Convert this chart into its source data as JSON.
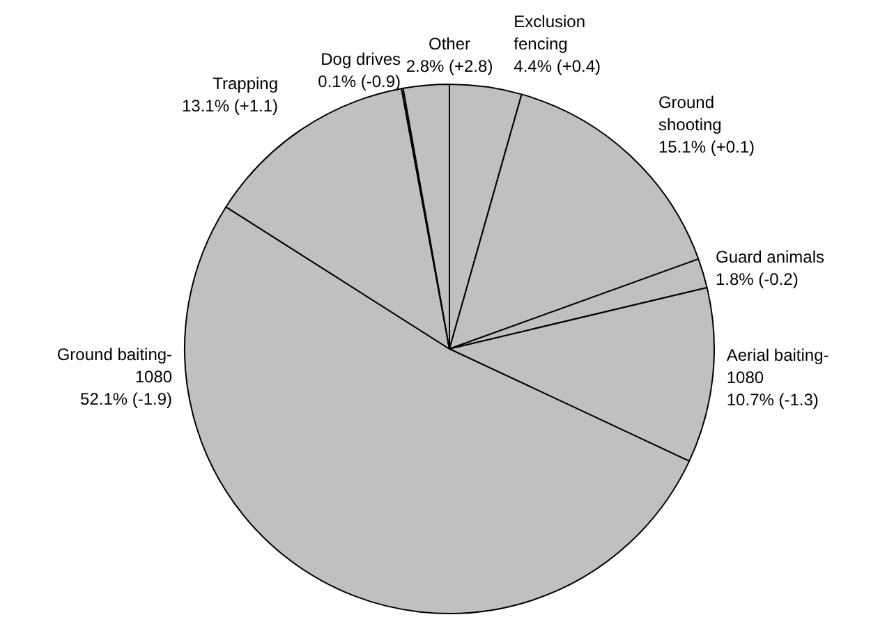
{
  "chart_data": {
    "type": "pie",
    "categories": [
      "Exclusion fencing",
      "Ground shooting",
      "Guard animals",
      "Aerial baiting-1080",
      "Ground baiting-1080",
      "Trapping",
      "Dog drives",
      "Other"
    ],
    "values": [
      4.4,
      15.1,
      1.8,
      10.7,
      52.1,
      13.1,
      0.1,
      2.8
    ],
    "value_labels": [
      "4.4% (+0.4)",
      "15.1% (+0.1)",
      "1.8% (-0.2)",
      "10.7% (-1.3)",
      "52.1% (-1.9)",
      "13.1% (+1.1)",
      "0.1% (-0.9)",
      "2.8% (+2.8)"
    ],
    "colors": [
      "#c0c0c0",
      "#c0c0c0",
      "#c0c0c0",
      "#c0c0c0",
      "#c0c0c0",
      "#c0c0c0",
      "#c0c0c0",
      "#c0c0c0"
    ],
    "legend": false
  }
}
